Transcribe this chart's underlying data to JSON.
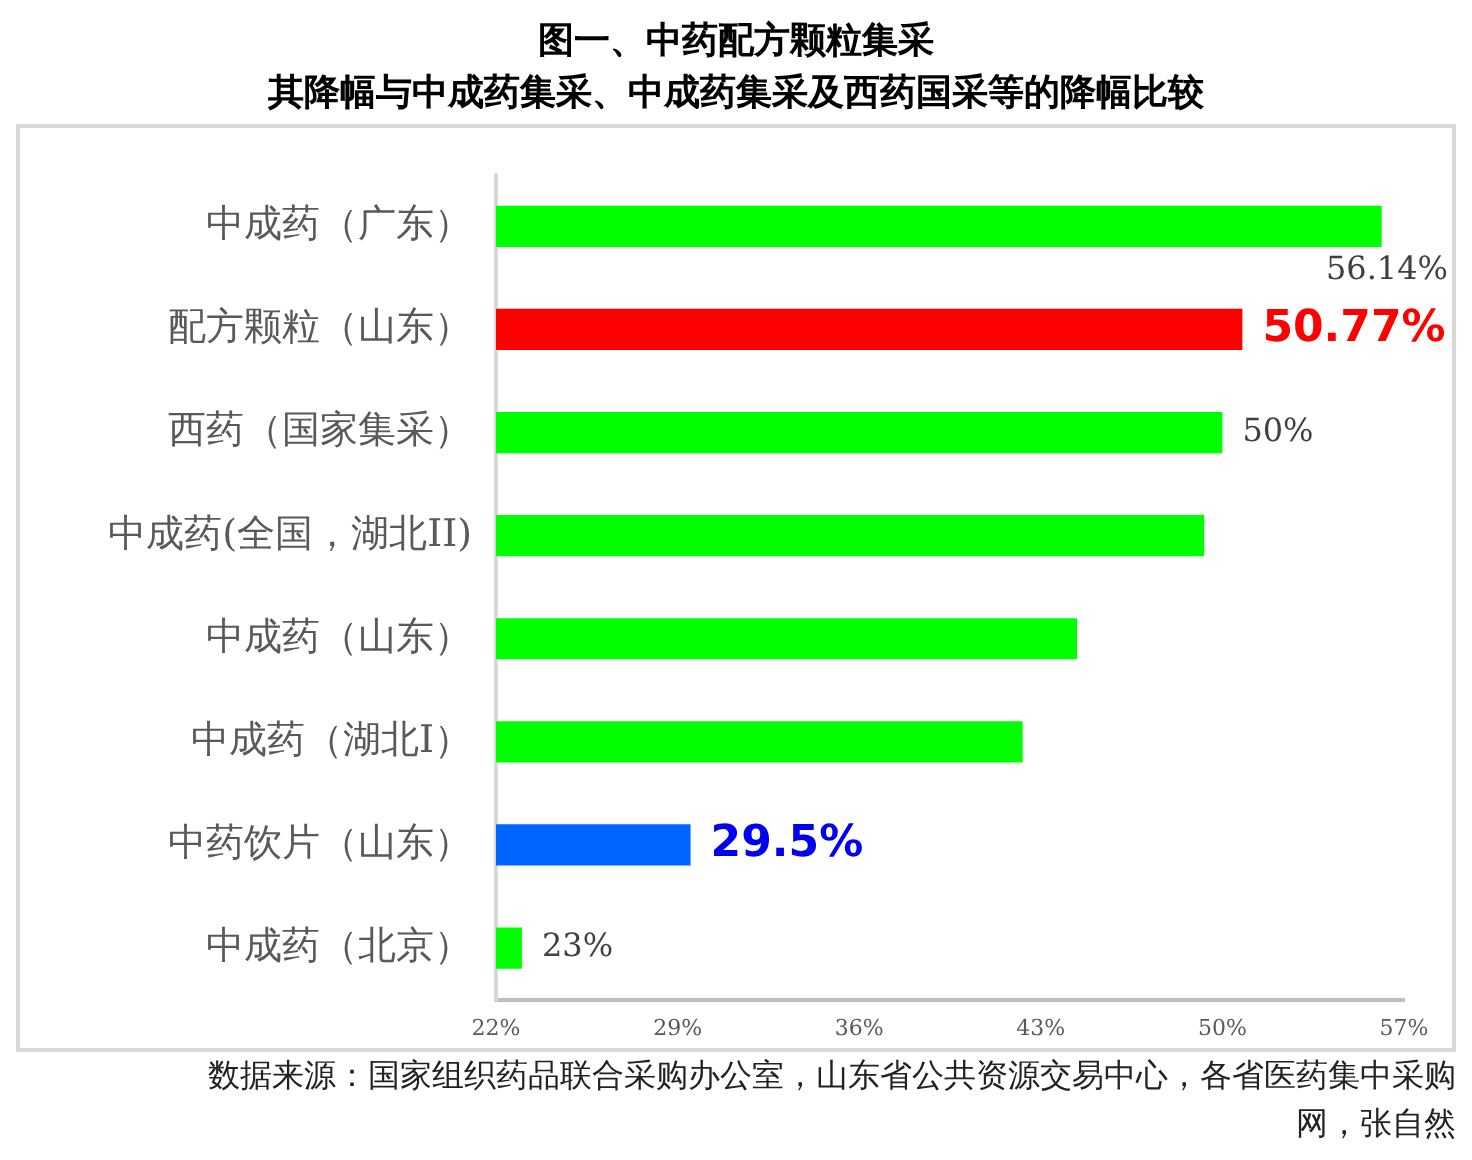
{
  "chart_data": {
    "type": "bar",
    "orientation": "horizontal",
    "title": "图一、中药配方颗粒集采",
    "subtitle": "其降幅与中成药集采、中成药集采及西药国采等的降幅比较",
    "categories": [
      "中成药（广东）",
      "配方颗粒（山东）",
      "西药（国家集采）",
      "中成药(全国，湖北II)",
      "中成药（山东）",
      "中成药（湖北I）",
      "中药饮片（山东）",
      "中成药（北京）"
    ],
    "values": [
      56.14,
      50.77,
      50,
      49.3,
      44.4,
      42.3,
      29.5,
      23
    ],
    "colors": [
      "#00ff00",
      "#ff0000",
      "#00ff00",
      "#00ff00",
      "#00ff00",
      "#00ff00",
      "#0066ff",
      "#00ff00"
    ],
    "value_labels": [
      "56.14%",
      "50.77%",
      "50%",
      null,
      null,
      null,
      "29.5%",
      "23%"
    ],
    "xlim": [
      22,
      57
    ],
    "xticks": [
      {
        "value": 22,
        "label": "22%"
      },
      {
        "value": 29,
        "label": "29%"
      },
      {
        "value": 36,
        "label": "36%"
      },
      {
        "value": 43,
        "label": "43%"
      },
      {
        "value": 50,
        "label": "50%"
      },
      {
        "value": 57,
        "label": "57%"
      }
    ],
    "grid": false,
    "legend": false,
    "annotations": [
      "数据来源：国家组织药品联合采购办公室，山东省公共资源交易中心，各省医药集中采购网，张自然"
    ]
  }
}
